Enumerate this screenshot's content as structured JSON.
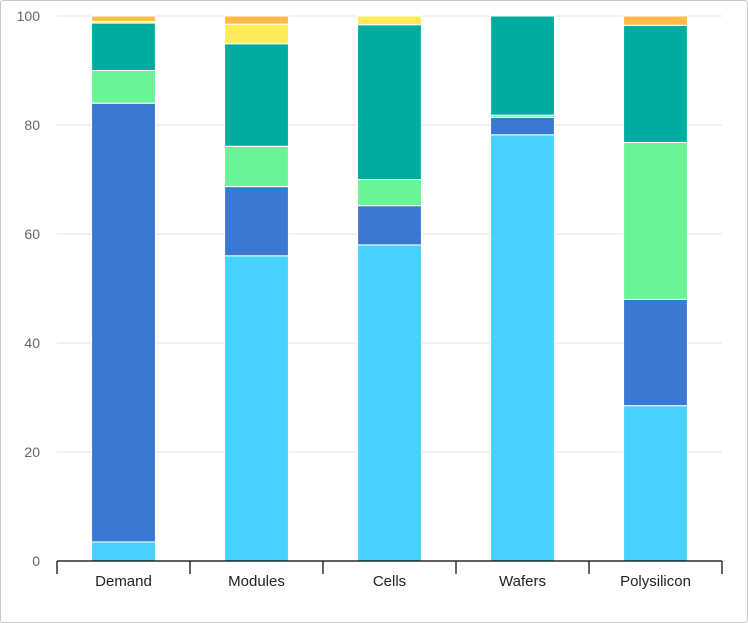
{
  "chart_data": {
    "type": "bar",
    "stacked": true,
    "categories": [
      "Demand",
      "Modules",
      "Cells",
      "Wafers",
      "Polysilicon"
    ],
    "series": [
      {
        "color": "#47d1ff",
        "values": [
          3.5,
          56,
          58,
          78.2,
          28.5
        ]
      },
      {
        "color": "#3b78d4",
        "values": [
          80.5,
          12.7,
          7.2,
          3.2,
          19.5
        ]
      },
      {
        "color": "#69f595",
        "values": [
          6,
          7.4,
          4.8,
          0.4,
          28.8
        ]
      },
      {
        "color": "#00aba0",
        "values": [
          8.7,
          18.8,
          28.4,
          18.2,
          21.5
        ]
      },
      {
        "color": "#ffeb57",
        "values": [
          0.3,
          3.6,
          1.6,
          0,
          0
        ]
      },
      {
        "color": "#ffba47",
        "values": [
          1,
          1.5,
          0,
          0,
          1.7
        ]
      }
    ],
    "ylim": [
      0,
      100
    ],
    "yticks": [
      0,
      20,
      40,
      60,
      80,
      100
    ],
    "grid": true,
    "legend": "none",
    "title": "",
    "xlabel": "",
    "ylabel": ""
  }
}
